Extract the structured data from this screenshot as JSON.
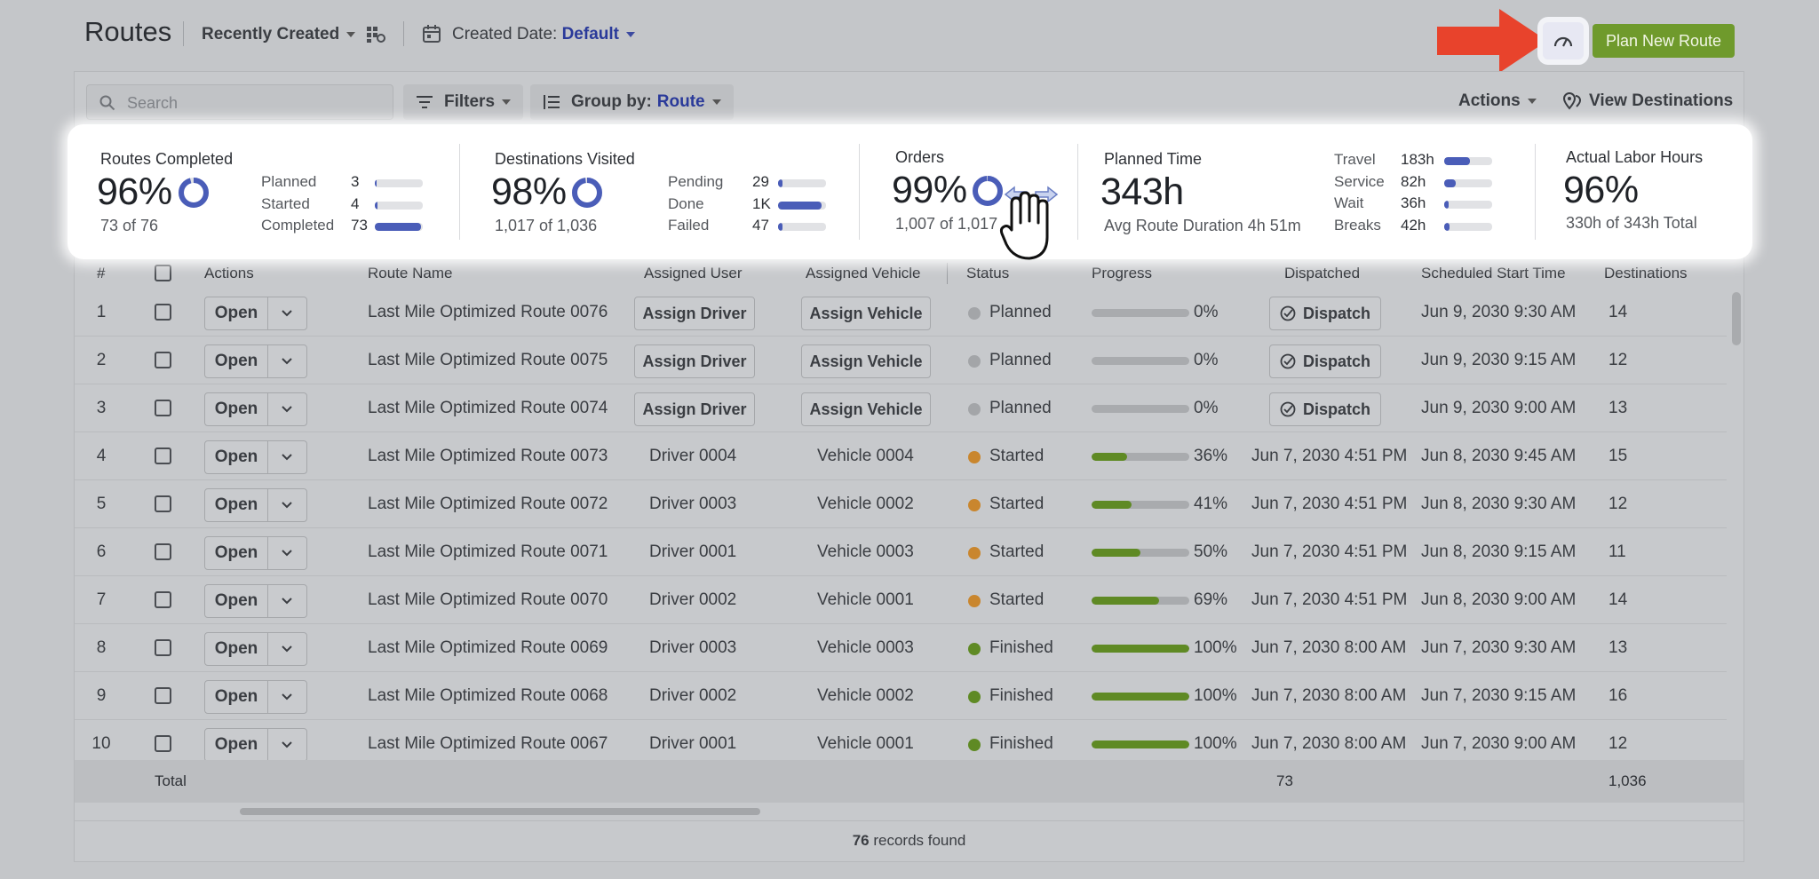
{
  "header": {
    "title": "Routes",
    "sort_label": "Recently Created",
    "created_date_label": "Created Date:",
    "created_date_value": "Default",
    "plan_button": "Plan New Route"
  },
  "toolbar": {
    "search_placeholder": "Search",
    "filters_label": "Filters",
    "group_by_label": "Group by:",
    "group_by_value": "Route",
    "actions_label": "Actions",
    "view_destinations_label": "View Destinations"
  },
  "stats": {
    "routes_completed": {
      "title": "Routes Completed",
      "percent": "96%",
      "percent_value": 96,
      "sub": "73 of 76",
      "rows": [
        {
          "label": "Planned",
          "value": "3",
          "fraction": 0.04
        },
        {
          "label": "Started",
          "value": "4",
          "fraction": 0.05
        },
        {
          "label": "Completed",
          "value": "73",
          "fraction": 0.96
        }
      ]
    },
    "destinations_visited": {
      "title": "Destinations Visited",
      "percent": "98%",
      "percent_value": 98,
      "sub": "1,017 of 1,036",
      "rows": [
        {
          "label": "Pending",
          "value": "29",
          "fraction": 0.1
        },
        {
          "label": "Done",
          "value": "1K",
          "fraction": 0.9
        },
        {
          "label": "Failed",
          "value": "47",
          "fraction": 0.1
        }
      ]
    },
    "orders": {
      "title": "Orders",
      "percent": "99%",
      "percent_value": 99,
      "sub": "1,007 of 1,017"
    },
    "planned_time": {
      "title": "Planned Time",
      "value": "343h",
      "sub": "Avg Route Duration 4h 51m",
      "rows": [
        {
          "label": "Travel",
          "value": "183h",
          "fraction": 0.53
        },
        {
          "label": "Service",
          "value": "82h",
          "fraction": 0.24
        },
        {
          "label": "Wait",
          "value": "36h",
          "fraction": 0.1
        },
        {
          "label": "Breaks",
          "value": "42h",
          "fraction": 0.12
        }
      ]
    },
    "actual_labor": {
      "title": "Actual Labor Hours",
      "percent": "96%",
      "sub": "330h of 343h Total"
    }
  },
  "table": {
    "headers": {
      "num": "#",
      "actions": "Actions",
      "route_name": "Route Name",
      "assigned_user": "Assigned User",
      "assigned_vehicle": "Assigned Vehicle",
      "status": "Status",
      "progress": "Progress",
      "dispatched": "Dispatched",
      "scheduled_start": "Scheduled Start Time",
      "destinations": "Destinations"
    },
    "open_label": "Open",
    "assign_driver_label": "Assign Driver",
    "assign_vehicle_label": "Assign Vehicle",
    "dispatch_label": "Dispatch",
    "rows": [
      {
        "num": "1",
        "route": "Last Mile Optimized Route 0076",
        "user": null,
        "vehicle": null,
        "status": "Planned",
        "status_color": "#a3a5a8",
        "progress": 0,
        "progress_label": "0%",
        "dispatched": null,
        "start": "Jun 9, 2030 9:30 AM",
        "destinations": "14"
      },
      {
        "num": "2",
        "route": "Last Mile Optimized Route 0075",
        "user": null,
        "vehicle": null,
        "status": "Planned",
        "status_color": "#a3a5a8",
        "progress": 0,
        "progress_label": "0%",
        "dispatched": null,
        "start": "Jun 9, 2030 9:15 AM",
        "destinations": "12"
      },
      {
        "num": "3",
        "route": "Last Mile Optimized Route 0074",
        "user": null,
        "vehicle": null,
        "status": "Planned",
        "status_color": "#a3a5a8",
        "progress": 0,
        "progress_label": "0%",
        "dispatched": null,
        "start": "Jun 9, 2030 9:00 AM",
        "destinations": "13"
      },
      {
        "num": "4",
        "route": "Last Mile Optimized Route 0073",
        "user": "Driver 0004",
        "vehicle": "Vehicle 0004",
        "status": "Started",
        "status_color": "#c9862e",
        "progress": 36,
        "progress_label": "36%",
        "dispatched": "Jun 7, 2030 4:51 PM",
        "start": "Jun 8, 2030 9:45 AM",
        "destinations": "15"
      },
      {
        "num": "5",
        "route": "Last Mile Optimized Route 0072",
        "user": "Driver 0003",
        "vehicle": "Vehicle 0002",
        "status": "Started",
        "status_color": "#c9862e",
        "progress": 41,
        "progress_label": "41%",
        "dispatched": "Jun 7, 2030 4:51 PM",
        "start": "Jun 8, 2030 9:30 AM",
        "destinations": "12"
      },
      {
        "num": "6",
        "route": "Last Mile Optimized Route 0071",
        "user": "Driver 0001",
        "vehicle": "Vehicle 0003",
        "status": "Started",
        "status_color": "#c9862e",
        "progress": 50,
        "progress_label": "50%",
        "dispatched": "Jun 7, 2030 4:51 PM",
        "start": "Jun 8, 2030 9:15 AM",
        "destinations": "11"
      },
      {
        "num": "7",
        "route": "Last Mile Optimized Route 0070",
        "user": "Driver 0002",
        "vehicle": "Vehicle 0001",
        "status": "Started",
        "status_color": "#c9862e",
        "progress": 69,
        "progress_label": "69%",
        "dispatched": "Jun 7, 2030 4:51 PM",
        "start": "Jun 8, 2030 9:00 AM",
        "destinations": "14"
      },
      {
        "num": "8",
        "route": "Last Mile Optimized Route 0069",
        "user": "Driver 0003",
        "vehicle": "Vehicle 0003",
        "status": "Finished",
        "status_color": "#5f8a24",
        "progress": 100,
        "progress_label": "100%",
        "dispatched": "Jun 7, 2030 8:00 AM",
        "start": "Jun 7, 2030 9:30 AM",
        "destinations": "13"
      },
      {
        "num": "9",
        "route": "Last Mile Optimized Route 0068",
        "user": "Driver 0002",
        "vehicle": "Vehicle 0002",
        "status": "Finished",
        "status_color": "#5f8a24",
        "progress": 100,
        "progress_label": "100%",
        "dispatched": "Jun 7, 2030 8:00 AM",
        "start": "Jun 7, 2030 9:15 AM",
        "destinations": "16"
      },
      {
        "num": "10",
        "route": "Last Mile Optimized Route 0067",
        "user": "Driver 0001",
        "vehicle": "Vehicle 0001",
        "status": "Finished",
        "status_color": "#5f8a24",
        "progress": 100,
        "progress_label": "100%",
        "dispatched": "Jun 7, 2030 8:00 AM",
        "start": "Jun 7, 2030 9:00 AM",
        "destinations": "12"
      }
    ],
    "total": {
      "label": "Total",
      "dispatched_total": "73",
      "destinations_total": "1,036"
    }
  },
  "footer": {
    "records_count": "76",
    "records_suffix": "records found"
  },
  "colors": {
    "accent_blue": "#4a5db8",
    "plan_green": "#6f9a2c",
    "arrow_red": "#e8432c"
  }
}
